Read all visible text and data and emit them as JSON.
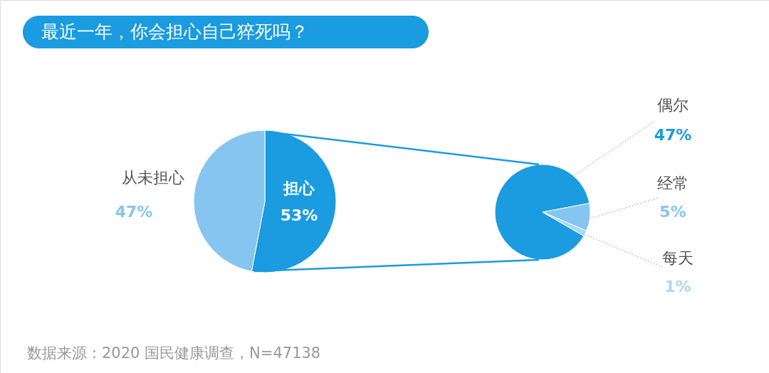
{
  "chart_data": [
    {
      "type": "pie",
      "title": "最近一年，你会担心自己猝死吗？",
      "categories": [
        "担心",
        "从未担心"
      ],
      "values": [
        53,
        47
      ],
      "colors": [
        "#1b9be0",
        "#86c5ef"
      ],
      "value_labels": [
        "53%",
        "47%"
      ],
      "annotations": [
        "数据来源：2020 国民健康调查，N=47138"
      ]
    },
    {
      "type": "pie",
      "categories": [
        "偶尔",
        "经常",
        "每天"
      ],
      "values": [
        47,
        5,
        1
      ],
      "colors": [
        "#1b9be0",
        "#86c5ef",
        "#a9d8f6"
      ],
      "value_labels": [
        "47%",
        "5%",
        "1%"
      ]
    }
  ]
}
